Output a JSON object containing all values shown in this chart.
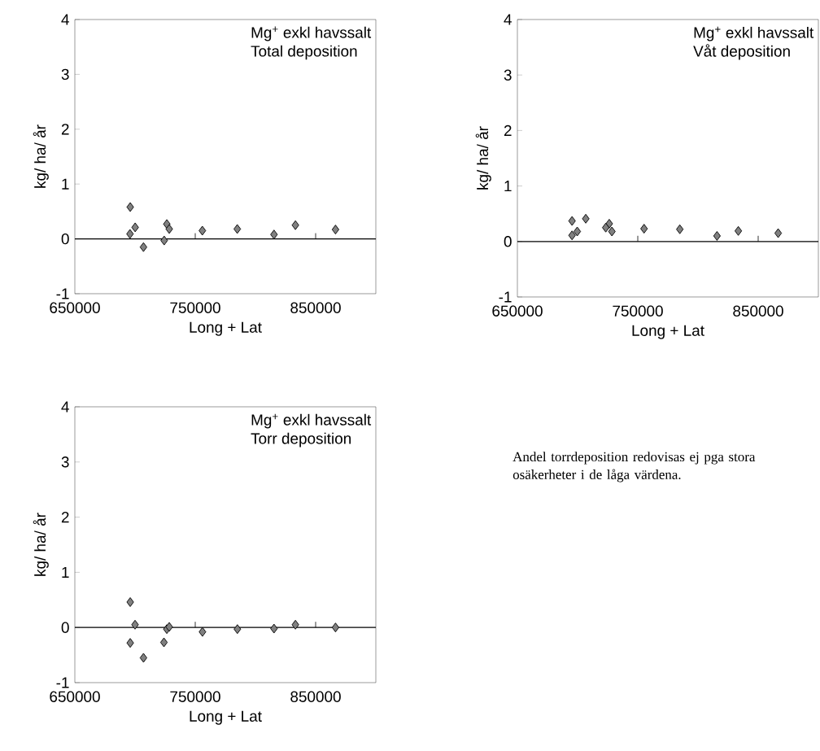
{
  "chart_data": [
    {
      "type": "scatter",
      "title": "Mg$^{+}$ exkl havssalt",
      "subtitle": "Total deposition",
      "xlabel": "Long + Lat",
      "ylabel": "kg/ ha/ år",
      "x": [
        696000,
        700100,
        695800,
        707000,
        726400,
        728400,
        724200,
        755900,
        784900,
        815400,
        833200,
        866500
      ],
      "values": [
        0.58,
        0.21,
        0.09,
        -0.15,
        0.27,
        0.18,
        -0.03,
        0.15,
        0.18,
        0.08,
        0.25,
        0.17
      ],
      "color": "#808080",
      "marker": "diamond",
      "xlim": [
        650000,
        900000
      ],
      "xticks": [
        650000,
        750000,
        850000
      ],
      "ylim": [
        -1,
        4
      ],
      "yticks": [
        -1,
        0,
        1,
        2,
        3,
        4
      ],
      "ref_lines": [
        {
          "axis": "y",
          "value": 0,
          "color": "#000000"
        }
      ]
    },
    {
      "type": "scatter",
      "title": "Mg$^{+}$ exkl havssalt",
      "subtitle": "Våt deposition",
      "xlabel": "Long + Lat",
      "ylabel": "kg/ ha/ år",
      "x": [
        695400,
        706800,
        695400,
        699700,
        726300,
        723400,
        728500,
        755200,
        784900,
        815800,
        833500,
        866600
      ],
      "values": [
        0.37,
        0.41,
        0.11,
        0.18,
        0.32,
        0.25,
        0.18,
        0.23,
        0.22,
        0.1,
        0.19,
        0.15
      ],
      "color": "#808080",
      "marker": "diamond",
      "xlim": [
        650000,
        900000
      ],
      "xticks": [
        650000,
        750000,
        850000
      ],
      "ylim": [
        -1,
        4
      ],
      "yticks": [
        -1,
        0,
        1,
        2,
        3,
        4
      ],
      "ref_lines": [
        {
          "axis": "y",
          "value": 0,
          "color": "#000000"
        }
      ],
      "annotations": [
        "Andel torrdeposition redovisas ej pga stora osäkerheter i de låga värdena."
      ]
    },
    {
      "type": "scatter",
      "title": "Mg$^{+}$ exkl havssalt",
      "subtitle": "Torr deposition",
      "xlabel": "Long + Lat",
      "ylabel": "kg/ ha/ år",
      "x": [
        696000,
        700000,
        696000,
        707000,
        724000,
        726400,
        728400,
        756000,
        785000,
        815400,
        833200,
        866500
      ],
      "values": [
        0.46,
        0.05,
        -0.28,
        -0.55,
        -0.27,
        -0.03,
        0.01,
        -0.08,
        -0.03,
        -0.02,
        0.05,
        0.0
      ],
      "color": "#808080",
      "marker": "diamond",
      "xlim": [
        650000,
        900000
      ],
      "xticks": [
        650000,
        750000,
        850000
      ],
      "ylim": [
        -1,
        4
      ],
      "yticks": [
        -1,
        0,
        1,
        2,
        3,
        4
      ],
      "ref_lines": [
        {
          "axis": "y",
          "value": 0,
          "color": "#000000"
        }
      ]
    }
  ]
}
